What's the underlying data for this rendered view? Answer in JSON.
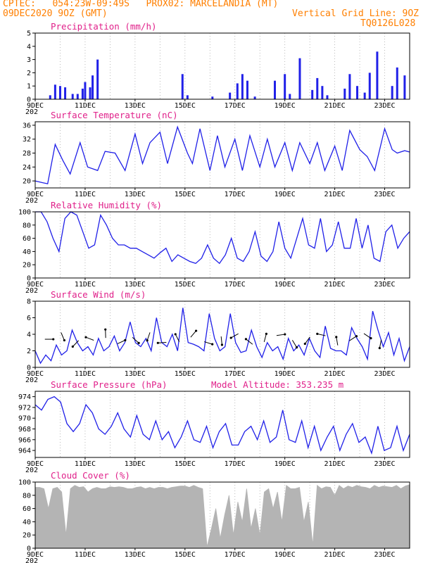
{
  "header": {
    "left_line1": "CPTEC:   054:23W-09:49S   PROX02: MARCELANDIA (MT)",
    "left_line2": "09DEC2020 9OZ (GMT)",
    "right_line2": "Vertical Grid Line: 9OZ",
    "right_line3": "TQ0126L028"
  },
  "colors": {
    "header": "#ff7f00",
    "title": "#e0208a",
    "series": "#2020e8",
    "cloud": "#b4b4b4",
    "grid": "#aaaaaa"
  },
  "x_axis": {
    "tick_labels": [
      "9DEC",
      "11DEC",
      "13DEC",
      "15DEC",
      "17DEC",
      "19DEC",
      "21DEC",
      "23DEC"
    ],
    "year_fragment": "202"
  },
  "panels": [
    {
      "id": "precip",
      "title": "Precipitation   (mm/h)",
      "ylim": [
        0,
        5
      ],
      "yticks": [
        0,
        1,
        2,
        3,
        4,
        5
      ]
    },
    {
      "id": "temp",
      "title": "Surface Temperature (nC)",
      "ylim": [
        18,
        37
      ],
      "yticks": [
        20,
        24,
        28,
        32,
        36
      ]
    },
    {
      "id": "rh",
      "title": "Relative Humidity  (%)",
      "ylim": [
        0,
        100
      ],
      "yticks": [
        0,
        20,
        40,
        60,
        80,
        100
      ]
    },
    {
      "id": "wind",
      "title": "Surface Wind  (m/s)",
      "ylim": [
        0,
        8
      ],
      "yticks": [
        0,
        2,
        4,
        6,
        8
      ]
    },
    {
      "id": "pres",
      "title": "Surface Pressure (hPa)",
      "extra": "Model Altitude: 353.235  m",
      "ylim": [
        962.7,
        975
      ],
      "yticks": [
        964,
        966,
        968,
        970,
        972,
        974
      ]
    },
    {
      "id": "cloud",
      "title": "Cloud Cover  (%)",
      "ylim": [
        0,
        100
      ],
      "yticks": [
        0,
        20,
        40,
        60,
        80,
        100
      ]
    }
  ],
  "chart_data": [
    {
      "type": "bar",
      "title": "Precipitation   (mm/h)",
      "ylim": [
        0,
        5
      ],
      "x_days": [
        0.6,
        0.8,
        1.0,
        1.2,
        1.5,
        1.7,
        1.9,
        2.0,
        2.2,
        2.3,
        2.5,
        5.9,
        6.1,
        7.1,
        7.8,
        8.1,
        8.3,
        8.5,
        8.8,
        9.6,
        10.0,
        10.2,
        10.6,
        11.1,
        11.3,
        11.5,
        11.7,
        12.4,
        12.6,
        12.9,
        13.2,
        13.4,
        13.7,
        14.3,
        14.5,
        14.8
      ],
      "values": [
        0.3,
        1.1,
        1.0,
        0.9,
        0.4,
        0.4,
        0.8,
        1.3,
        0.9,
        1.8,
        3.0,
        1.9,
        0.3,
        0.2,
        0.5,
        1.2,
        1.9,
        1.4,
        0.2,
        1.4,
        1.9,
        0.4,
        3.1,
        0.7,
        1.6,
        1.0,
        0.3,
        0.8,
        1.9,
        1.0,
        0.5,
        2.0,
        3.6,
        1.0,
        2.4,
        1.8
      ]
    },
    {
      "type": "line",
      "title": "Surface Temperature (nC)",
      "ylim": [
        18,
        37
      ],
      "x_days": [
        0,
        0.3,
        0.5,
        0.8,
        1.1,
        1.4,
        1.8,
        2.1,
        2.5,
        2.8,
        3.2,
        3.6,
        4.0,
        4.3,
        4.6,
        5.0,
        5.3,
        5.7,
        6.1,
        6.3,
        6.6,
        7.0,
        7.3,
        7.6,
        8.0,
        8.3,
        8.6,
        9.0,
        9.3,
        9.6,
        10.0,
        10.3,
        10.6,
        11.0,
        11.3,
        11.6,
        12.0,
        12.3,
        12.6,
        13.0,
        13.3,
        13.6,
        14.0,
        14.3,
        14.5,
        14.8,
        15.0
      ],
      "values": [
        20,
        19.5,
        19.2,
        30.5,
        26,
        22,
        31,
        24,
        23,
        28.5,
        28,
        23,
        33.5,
        25,
        31,
        34,
        25,
        35.5,
        28,
        25,
        35,
        23,
        33,
        24,
        32,
        23,
        33,
        24,
        32,
        24,
        31,
        23,
        31,
        25,
        31,
        23,
        30,
        23,
        34.5,
        29,
        27,
        23,
        35,
        29,
        28,
        28.7,
        28.3
      ]
    },
    {
      "type": "line",
      "title": "Relative Humidity  (%)",
      "ylim": [
        0,
        100
      ],
      "values": [
        100,
        100,
        85,
        60,
        40,
        90,
        100,
        95,
        70,
        45,
        50,
        95,
        80,
        60,
        50,
        50,
        45,
        45,
        40,
        35,
        30,
        38,
        45,
        25,
        35,
        30,
        25,
        22,
        30,
        50,
        30,
        22,
        35,
        60,
        30,
        25,
        40,
        70,
        33,
        25,
        40,
        85,
        45,
        30,
        60,
        90,
        50,
        45,
        90,
        40,
        50,
        85,
        45,
        45,
        90,
        45,
        80,
        30,
        25,
        70,
        80,
        45,
        60,
        70
      ]
    },
    {
      "type": "line",
      "title": "Surface Wind  (m/s)",
      "ylim": [
        0,
        8
      ],
      "values": [
        2.0,
        0.5,
        1.5,
        0.8,
        2.7,
        1.5,
        2.0,
        4.5,
        3.0,
        2.0,
        2.5,
        1.5,
        3.5,
        2.0,
        2.5,
        3.8,
        2.0,
        3.0,
        5.5,
        3.0,
        2.5,
        3.5,
        2.0,
        6.0,
        3.0,
        2.5,
        4.0,
        2.0,
        7.2,
        3.0,
        2.8,
        2.5,
        2.0,
        6.5,
        3.5,
        2.0,
        2.5,
        6.5,
        3.0,
        1.8,
        2.0,
        4.5,
        2.5,
        1.2,
        3.0,
        2.0,
        2.5,
        1.0,
        3.5,
        2.0,
        2.7,
        1.5,
        3.5,
        2.0,
        1.2,
        5.0,
        2.3,
        2.0,
        2.0,
        1.5,
        4.8,
        3.5,
        2.5,
        1.0,
        6.8,
        4.5,
        2.5,
        4.2,
        1.5,
        3.5,
        0.8,
        2.5
      ]
    },
    {
      "type": "line",
      "title": "Surface Pressure (hPa)",
      "ylim": [
        962.7,
        975
      ],
      "values": [
        972.5,
        971.5,
        973.5,
        974.0,
        973.0,
        969.0,
        967.5,
        969.0,
        972.5,
        971.0,
        968.0,
        967.0,
        968.5,
        971.0,
        968.0,
        966.5,
        970.5,
        967.0,
        966.0,
        969.5,
        966.0,
        967.5,
        964.5,
        966.5,
        969.5,
        966.0,
        965.5,
        968.5,
        964.5,
        967.5,
        969.0,
        965.0,
        965.0,
        967.5,
        968.5,
        966.0,
        969.5,
        965.5,
        966.5,
        971.5,
        966.0,
        965.5,
        969.5,
        964.5,
        968.5,
        964.0,
        966.5,
        968.5,
        964.0,
        967.0,
        969.0,
        965.5,
        966.5,
        963.5,
        968.5,
        964.0,
        964.5,
        968.5,
        964.0,
        967.0
      ]
    },
    {
      "type": "area",
      "title": "Cloud Cover  (%)",
      "ylim": [
        0,
        100
      ],
      "values": [
        92,
        92,
        90,
        60,
        90,
        92,
        85,
        20,
        90,
        95,
        92,
        93,
        85,
        90,
        92,
        90,
        90,
        93,
        92,
        93,
        92,
        90,
        90,
        92,
        93,
        90,
        92,
        90,
        92,
        92,
        90,
        92,
        93,
        94,
        94,
        92,
        95,
        92,
        90,
        2,
        30,
        60,
        15,
        50,
        80,
        20,
        70,
        40,
        90,
        30,
        60,
        20,
        85,
        90,
        60,
        85,
        40,
        95,
        90,
        90,
        92,
        40,
        70,
        5,
        95,
        90,
        93,
        92,
        80,
        95,
        90,
        94,
        92,
        95,
        93,
        92,
        90,
        95,
        92,
        94,
        93,
        92,
        95,
        90,
        94,
        96
      ]
    }
  ]
}
